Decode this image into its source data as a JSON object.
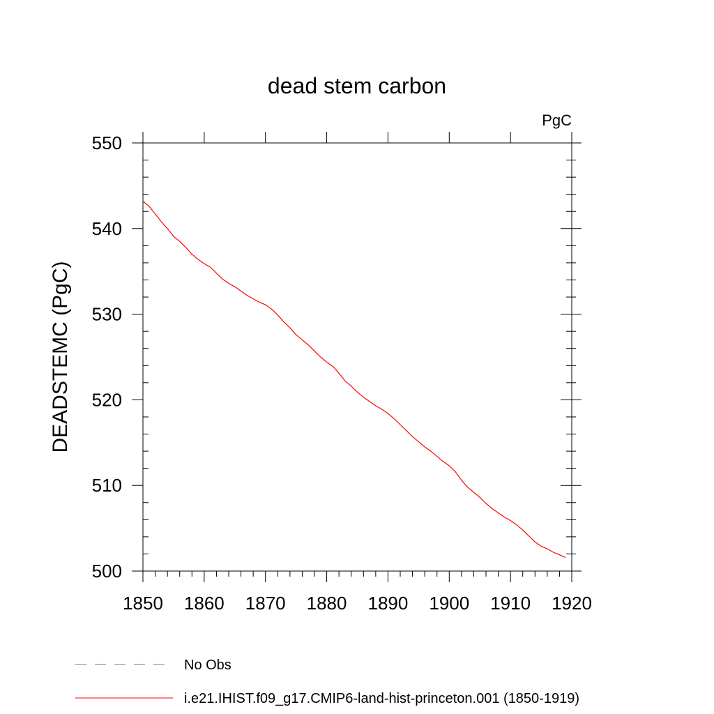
{
  "chart_data": {
    "type": "line",
    "title": "dead stem carbon",
    "units_label": "PgC",
    "ylabel": "DEADSTEMC  (PgC)",
    "xlabel": "",
    "xlim": [
      1850,
      1920
    ],
    "ylim": [
      500,
      550
    ],
    "x_ticks": [
      1850,
      1860,
      1870,
      1880,
      1890,
      1900,
      1910,
      1920
    ],
    "y_ticks": [
      500,
      510,
      520,
      530,
      540,
      550
    ],
    "grid": false,
    "legend_position": "bottom",
    "series": [
      {
        "name": "i.e21.IHIST.f09_g17.CMIP6-land-hist-princeton.001 (1850-1919)",
        "color": "#ff0000",
        "style": "solid",
        "x": [
          1850,
          1851,
          1852,
          1853,
          1854,
          1855,
          1856,
          1857,
          1858,
          1859,
          1860,
          1861,
          1862,
          1863,
          1864,
          1865,
          1866,
          1867,
          1868,
          1869,
          1870,
          1871,
          1872,
          1873,
          1874,
          1875,
          1876,
          1877,
          1878,
          1879,
          1880,
          1881,
          1882,
          1883,
          1884,
          1885,
          1886,
          1887,
          1888,
          1889,
          1890,
          1891,
          1892,
          1893,
          1894,
          1895,
          1896,
          1897,
          1898,
          1899,
          1900,
          1901,
          1902,
          1903,
          1904,
          1905,
          1906,
          1907,
          1908,
          1909,
          1910,
          1911,
          1912,
          1913,
          1914,
          1915,
          1916,
          1917,
          1918,
          1919
        ],
        "y": [
          543.2,
          542.6,
          541.7,
          540.8,
          540.0,
          539.1,
          538.5,
          537.8,
          537.0,
          536.4,
          535.9,
          535.5,
          534.8,
          534.1,
          533.6,
          533.2,
          532.7,
          532.2,
          531.8,
          531.4,
          531.1,
          530.6,
          529.9,
          529.1,
          528.4,
          527.6,
          527.0,
          526.4,
          525.7,
          525.0,
          524.4,
          523.9,
          523.1,
          522.2,
          521.6,
          520.9,
          520.3,
          519.8,
          519.3,
          518.9,
          518.4,
          517.8,
          517.1,
          516.4,
          515.7,
          515.1,
          514.5,
          514.0,
          513.4,
          512.8,
          512.3,
          511.6,
          510.6,
          509.8,
          509.2,
          508.6,
          507.9,
          507.3,
          506.8,
          506.3,
          505.9,
          505.4,
          504.8,
          504.1,
          503.4,
          502.9,
          502.6,
          502.2,
          501.9,
          501.6
        ]
      },
      {
        "name": "No Obs",
        "color": "#7f6fb5",
        "style": "dashed",
        "x": [],
        "y": []
      }
    ]
  }
}
